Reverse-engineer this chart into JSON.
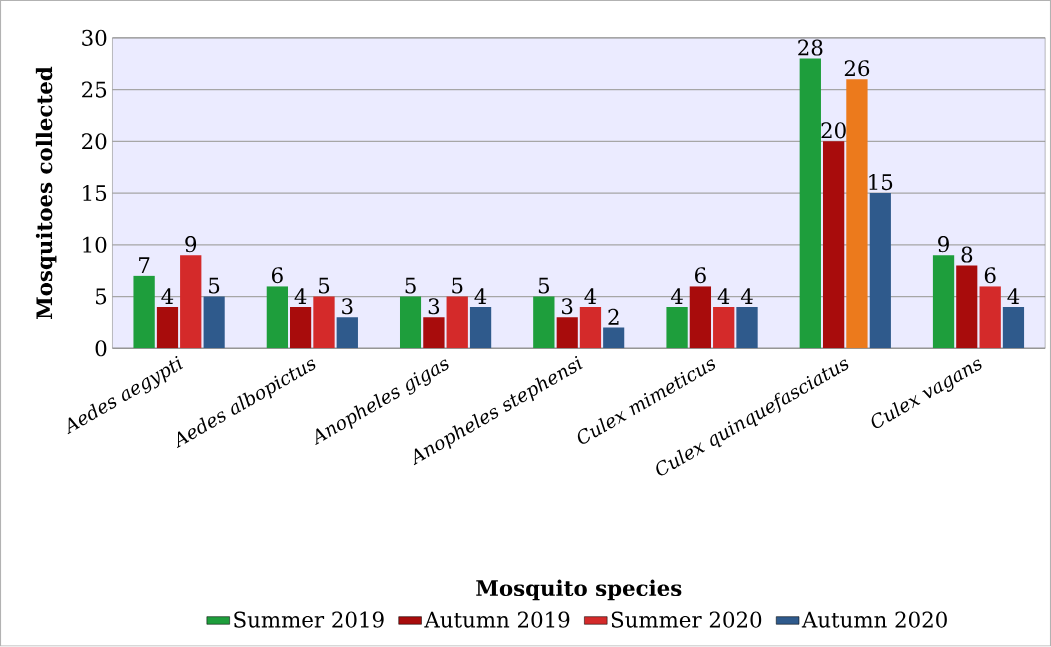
{
  "chart_data": {
    "type": "bar",
    "xlabel": "Mosquito species",
    "ylabel": "Mosquitoes collected",
    "categories": [
      "Aedes aegypti",
      "Aedes albopictus",
      "Anopheles gigas",
      "Anopheles stephensi",
      "Culex mimeticus",
      "Culex quinquefasciatus",
      "Culex vagans"
    ],
    "series": [
      {
        "name": "Summer 2019",
        "color": "#1e9e3c",
        "values": [
          7,
          6,
          5,
          5,
          4,
          28,
          9
        ]
      },
      {
        "name": "Autumn 2019",
        "color": "#a80c0c",
        "values": [
          4,
          4,
          3,
          3,
          6,
          20,
          8
        ]
      },
      {
        "name": "Summer 2020",
        "color": "#d42a2a",
        "colors": [
          "#d42a2a",
          "#d42a2a",
          "#d42a2a",
          "#d42a2a",
          "#d42a2a",
          "#ec7a1c",
          "#d42a2a"
        ],
        "values": [
          9,
          5,
          5,
          4,
          4,
          26,
          6
        ]
      },
      {
        "name": "Autumn 2020",
        "color": "#2f5a8c",
        "values": [
          5,
          3,
          4,
          2,
          4,
          15,
          4
        ]
      }
    ],
    "ylim": [
      0,
      30
    ],
    "yticks": [
      0,
      5,
      10,
      15,
      20,
      25,
      30
    ],
    "grid": "y",
    "legend": "bottom",
    "data_labels": true
  }
}
